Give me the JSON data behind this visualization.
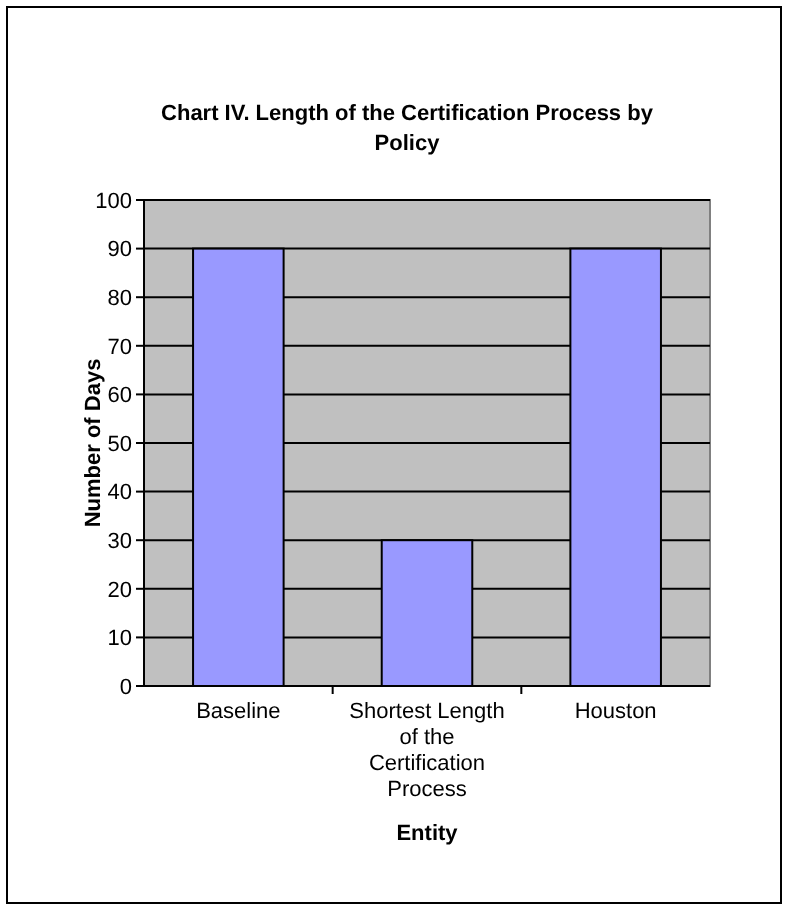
{
  "chart_data": {
    "type": "bar",
    "title": "Chart IV.  Length of the Certification Process by Policy",
    "xlabel": "Entity",
    "ylabel": "Number of Days",
    "categories": [
      "Baseline",
      "Shortest Length of the Certification Process",
      "Houston"
    ],
    "values": [
      90,
      30,
      90
    ],
    "color": "#9999ff",
    "ylim": [
      0,
      100
    ],
    "yticks": [
      0,
      10,
      20,
      30,
      40,
      50,
      60,
      70,
      80,
      90,
      100
    ],
    "grid": "y"
  }
}
